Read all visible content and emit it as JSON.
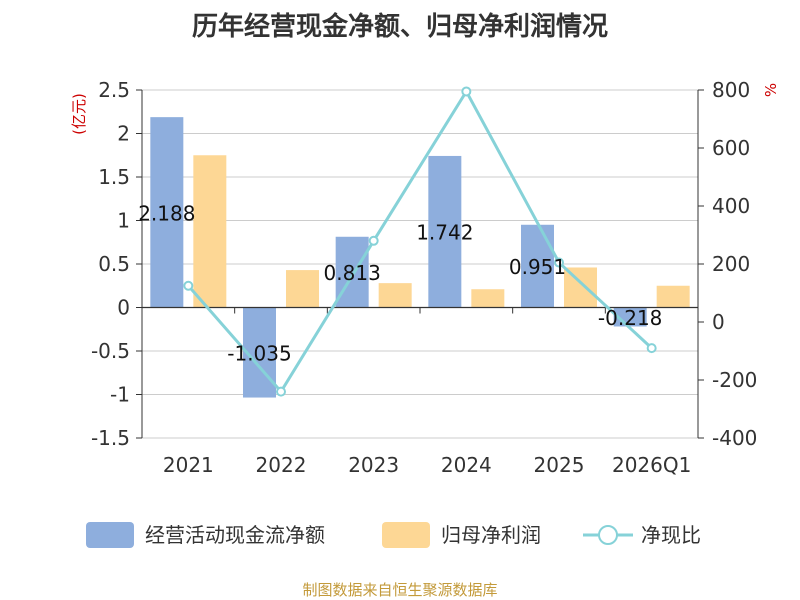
{
  "title": "历年经营现金净额、归母净利润情况",
  "source": "制图数据来自恒生聚源数据库",
  "chart_data": {
    "type": "bar",
    "categories": [
      "2021",
      "2022",
      "2023",
      "2024",
      "2025",
      "2026Q1"
    ],
    "series": [
      {
        "name": "经营活动现金流净额",
        "type": "bar",
        "axis": "left",
        "color": "#8eaedd",
        "values": [
          2.188,
          -1.035,
          0.813,
          1.742,
          0.951,
          -0.218
        ],
        "labels": [
          "2.188",
          "-1.035",
          "0.813",
          "1.742",
          "0.951",
          "-0.218"
        ]
      },
      {
        "name": "归母净利润",
        "type": "bar",
        "axis": "left",
        "color": "#fdd795",
        "values": [
          1.75,
          0.43,
          0.28,
          0.21,
          0.46,
          0.25
        ]
      },
      {
        "name": "净现比",
        "type": "line",
        "axis": "right",
        "color": "#86d2d8",
        "values": [
          125,
          -240,
          280,
          795,
          205,
          -90
        ]
      }
    ],
    "y_left": {
      "label": "(亿元)",
      "ticks": [
        "2.5",
        "2",
        "1.5",
        "1",
        "0.5",
        "0",
        "-0.5",
        "-1",
        "-1.5"
      ],
      "min": -1.5,
      "max": 2.5
    },
    "y_right": {
      "label": "%",
      "ticks": [
        "800",
        "600",
        "400",
        "200",
        "0",
        "-200",
        "-400"
      ],
      "min": -400,
      "max": 800
    },
    "grid": true,
    "legend": "bottom"
  }
}
